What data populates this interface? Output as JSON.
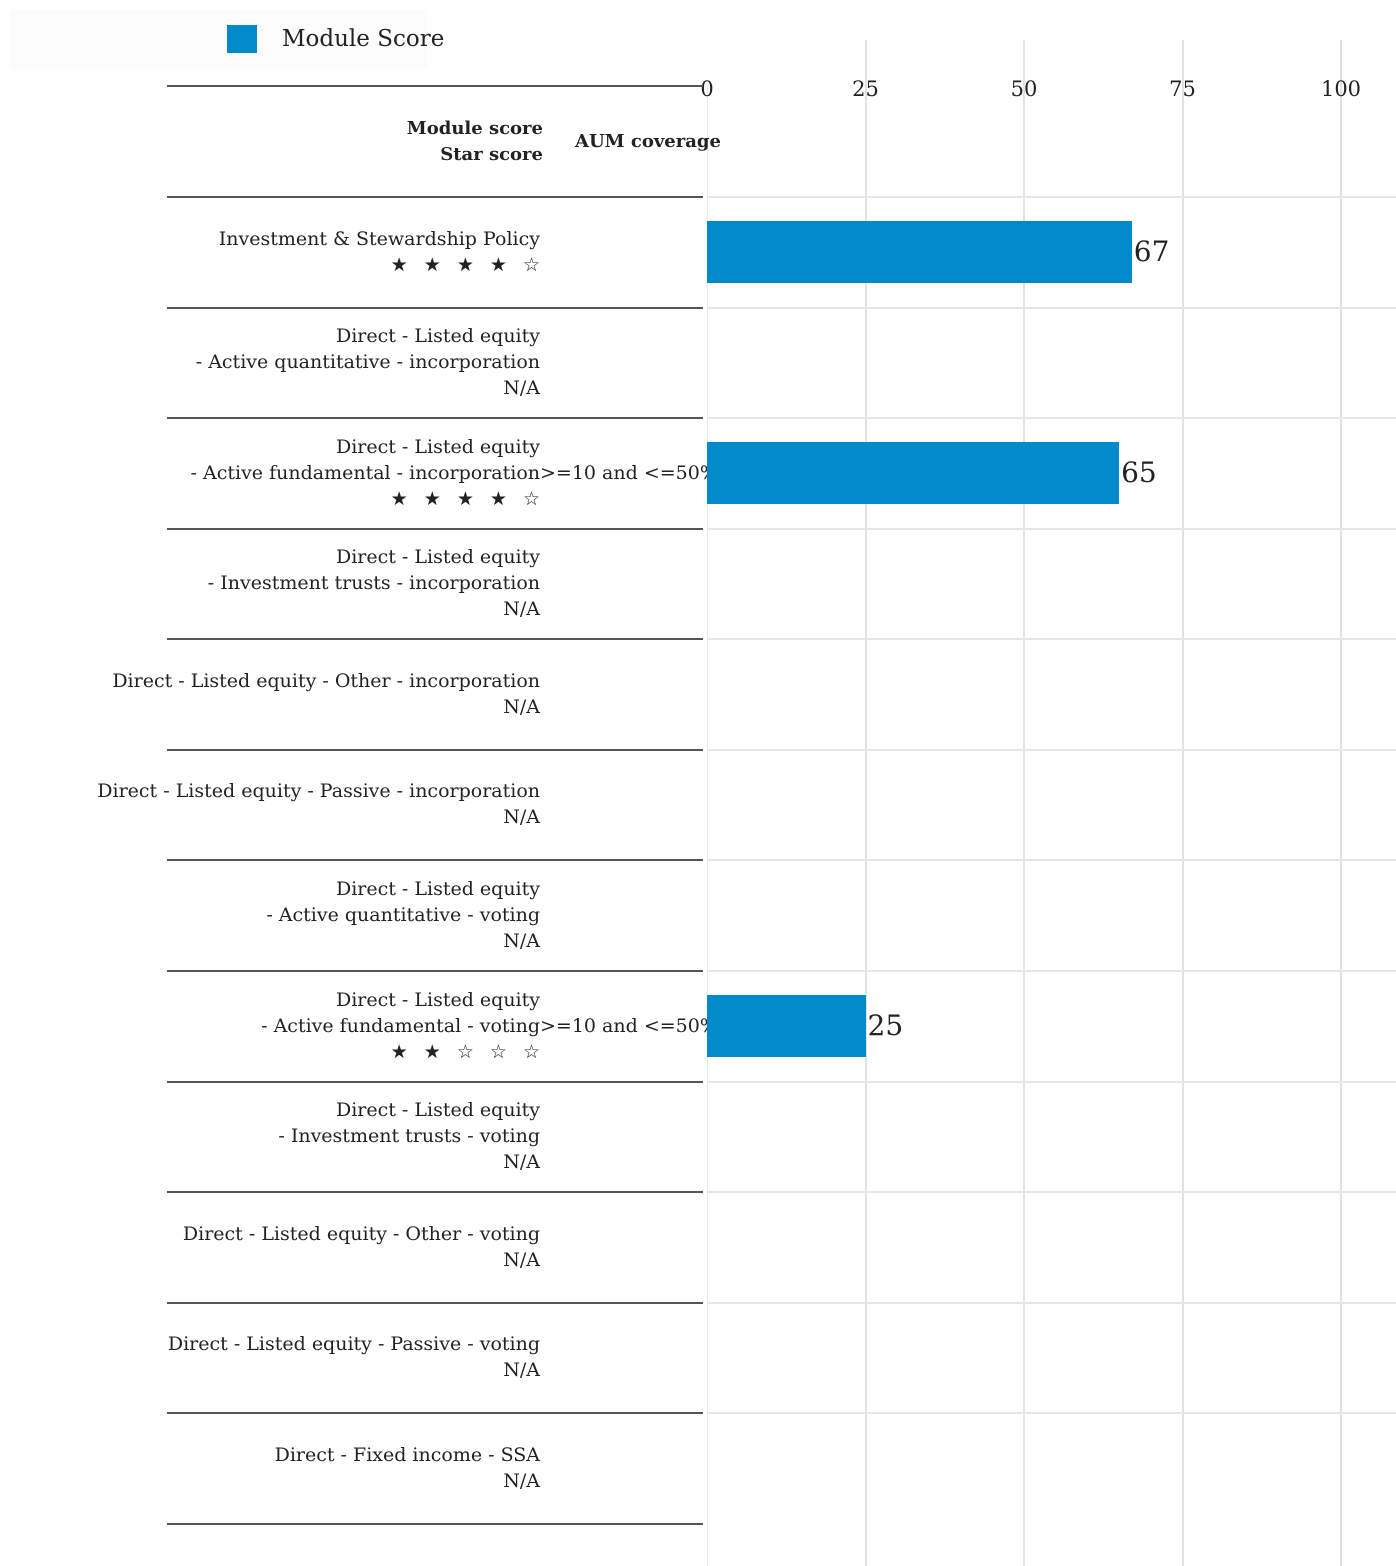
{
  "legend": {
    "label": "Module Score",
    "color": "#008ac9"
  },
  "header": {
    "module_score": "Module score",
    "star_score": "Star score",
    "aum_coverage": "AUM coverage"
  },
  "chart_data": {
    "type": "bar",
    "orientation": "horizontal",
    "xlim": [
      0,
      100
    ],
    "xticks": [
      0,
      25,
      50,
      75,
      100
    ],
    "grid": true,
    "legend_position": "top-left",
    "series": [
      {
        "name": "Module Score",
        "color": "#008ac9"
      }
    ],
    "rows": [
      {
        "lines": [
          "Investment & Stewardship Policy"
        ],
        "stars": "★ ★ ★ ★ ☆",
        "aum": "",
        "value": 67
      },
      {
        "lines": [
          "Direct - Listed equity",
          "- Active quantitative - incorporation"
        ],
        "stars": "N/A",
        "aum": "",
        "value": null
      },
      {
        "lines": [
          "Direct - Listed equity",
          "- Active fundamental - incorporation"
        ],
        "stars": "★ ★ ★ ★ ☆",
        "aum": ">=10 and <=50%",
        "value": 65
      },
      {
        "lines": [
          "Direct - Listed equity",
          "- Investment trusts - incorporation"
        ],
        "stars": "N/A",
        "aum": "",
        "value": null
      },
      {
        "lines": [
          "Direct - Listed equity - Other - incorporation"
        ],
        "stars": "N/A",
        "aum": "",
        "value": null
      },
      {
        "lines": [
          "Direct - Listed equity - Passive - incorporation"
        ],
        "stars": "N/A",
        "aum": "",
        "value": null
      },
      {
        "lines": [
          "Direct - Listed equity",
          "- Active quantitative - voting"
        ],
        "stars": "N/A",
        "aum": "",
        "value": null
      },
      {
        "lines": [
          "Direct - Listed equity",
          "- Active fundamental - voting"
        ],
        "stars": "★ ★ ☆ ☆ ☆",
        "aum": ">=10 and <=50%",
        "value": 25
      },
      {
        "lines": [
          "Direct - Listed equity",
          "- Investment trusts - voting"
        ],
        "stars": "N/A",
        "aum": "",
        "value": null
      },
      {
        "lines": [
          "Direct - Listed equity - Other - voting"
        ],
        "stars": "N/A",
        "aum": "",
        "value": null
      },
      {
        "lines": [
          "Direct - Listed equity - Passive - voting"
        ],
        "stars": "N/A",
        "aum": "",
        "value": null
      },
      {
        "lines": [
          "Direct - Fixed income - SSA"
        ],
        "stars": "N/A",
        "aum": "",
        "value": null
      }
    ]
  }
}
